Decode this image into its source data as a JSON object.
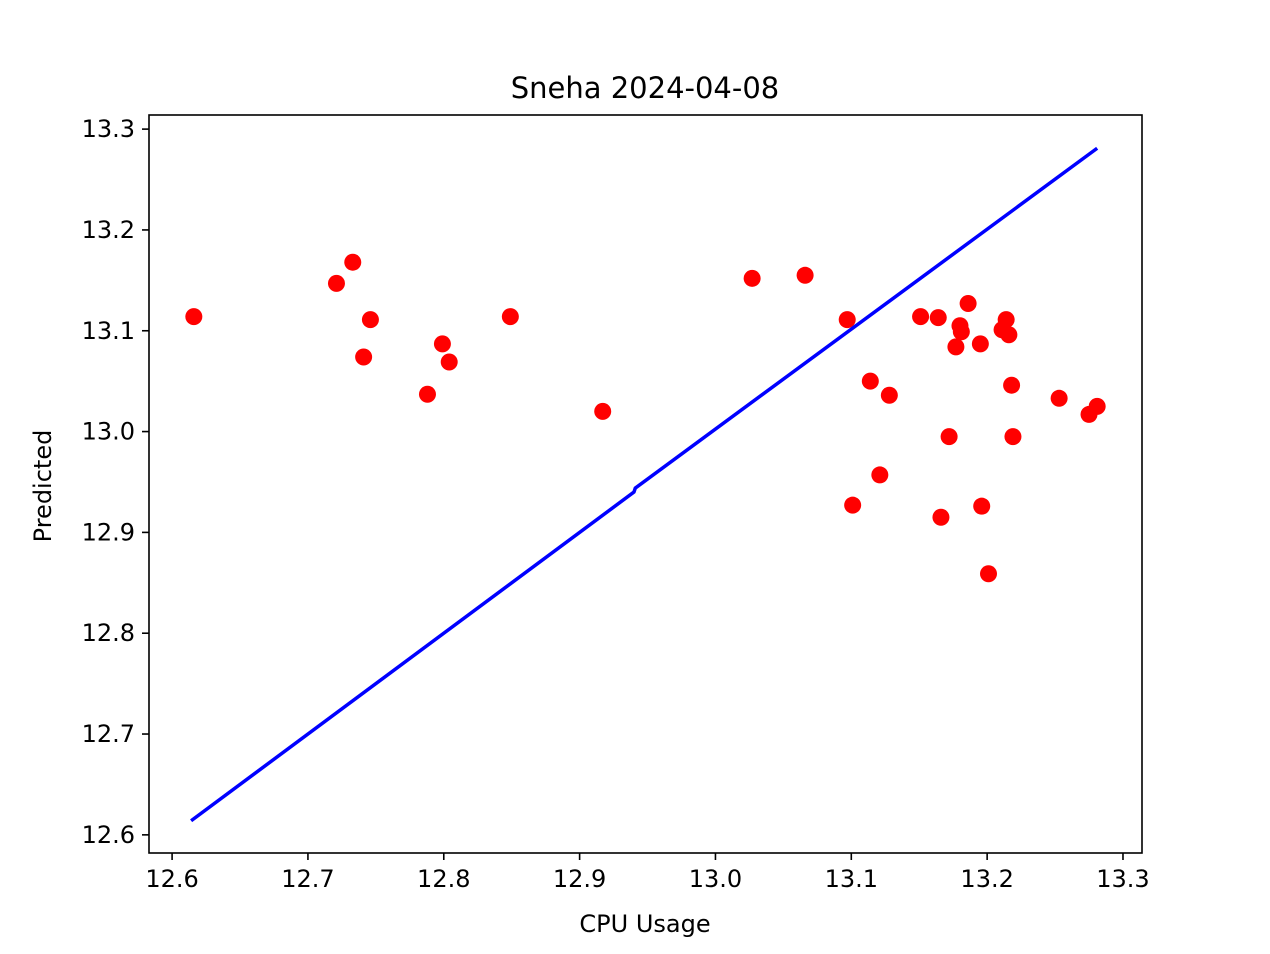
{
  "chart_data": {
    "type": "scatter",
    "title": "Sneha 2024-04-08",
    "xlabel": "CPU Usage",
    "ylabel": "Predicted",
    "xlim": [
      12.583,
      13.314
    ],
    "ylim": [
      12.582,
      13.314
    ],
    "xticks": [
      12.6,
      12.7,
      12.8,
      12.9,
      13.0,
      13.1,
      13.2,
      13.3
    ],
    "xtick_labels": [
      "12.6",
      "12.7",
      "12.8",
      "12.9",
      "13.0",
      "13.1",
      "13.2",
      "13.3"
    ],
    "yticks": [
      12.6,
      12.7,
      12.8,
      12.9,
      13.0,
      13.1,
      13.2,
      13.3
    ],
    "ytick_labels": [
      "12.6",
      "12.7",
      "12.8",
      "12.9",
      "13.0",
      "13.1",
      "13.2",
      "13.3"
    ],
    "grid": false,
    "legend": "none",
    "series": [
      {
        "type": "scatter",
        "color": "#ff0000",
        "points": [
          [
            12.616,
            13.114
          ],
          [
            12.721,
            13.147
          ],
          [
            12.733,
            13.168
          ],
          [
            12.741,
            13.074
          ],
          [
            12.746,
            13.111
          ],
          [
            12.788,
            13.037
          ],
          [
            12.799,
            13.087
          ],
          [
            12.804,
            13.069
          ],
          [
            12.849,
            13.114
          ],
          [
            12.917,
            13.02
          ],
          [
            13.027,
            13.152
          ],
          [
            13.066,
            13.155
          ],
          [
            13.097,
            13.111
          ],
          [
            13.101,
            12.927
          ],
          [
            13.114,
            13.05
          ],
          [
            13.121,
            12.957
          ],
          [
            13.128,
            13.036
          ],
          [
            13.151,
            13.114
          ],
          [
            13.164,
            13.113
          ],
          [
            13.166,
            12.915
          ],
          [
            13.172,
            12.995
          ],
          [
            13.177,
            13.084
          ],
          [
            13.18,
            13.105
          ],
          [
            13.181,
            13.099
          ],
          [
            13.186,
            13.127
          ],
          [
            13.195,
            13.087
          ],
          [
            13.196,
            12.926
          ],
          [
            13.201,
            12.859
          ],
          [
            13.211,
            13.101
          ],
          [
            13.214,
            13.111
          ],
          [
            13.216,
            13.096
          ],
          [
            13.218,
            13.046
          ],
          [
            13.219,
            12.995
          ],
          [
            13.253,
            13.033
          ],
          [
            13.275,
            13.017
          ],
          [
            13.281,
            13.025
          ]
        ]
      },
      {
        "type": "line",
        "color": "#0000ff",
        "points": [
          [
            12.614,
            12.614
          ],
          [
            12.94,
            12.94
          ],
          [
            12.941,
            12.944
          ],
          [
            13.281,
            13.281
          ]
        ]
      }
    ]
  }
}
